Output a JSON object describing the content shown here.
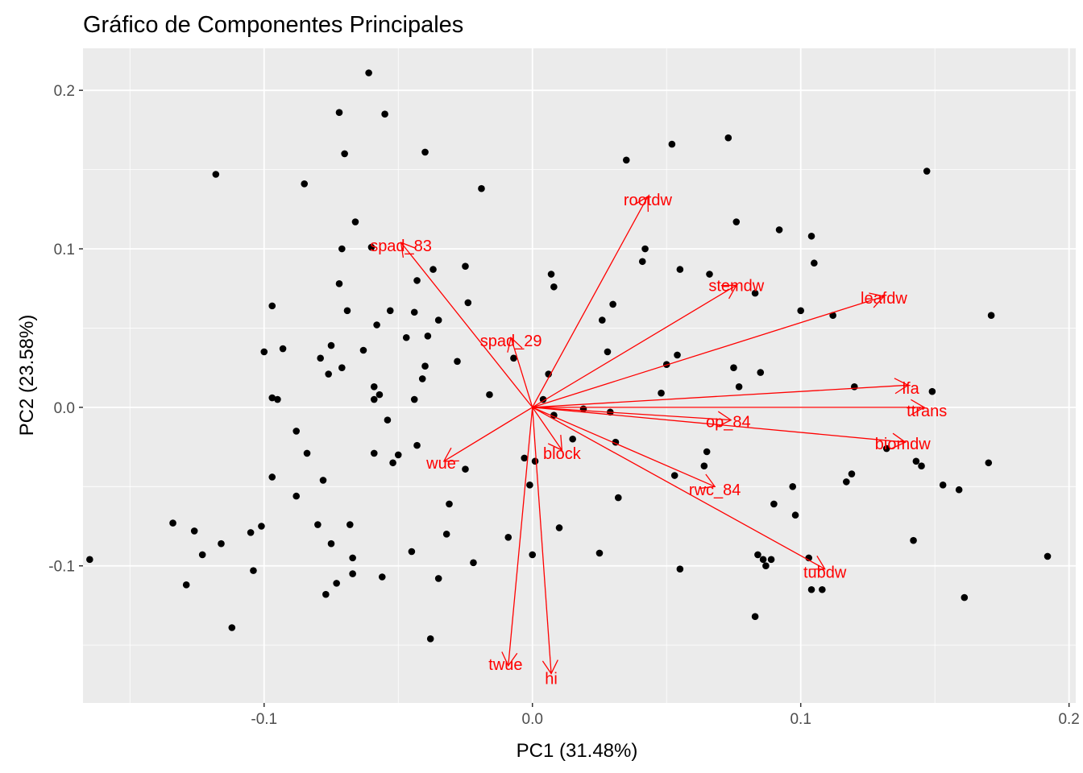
{
  "chart_data": {
    "type": "scatter",
    "subtype": "biplot",
    "title": "Gráfico de Componentes Principales",
    "xlabel": "PC1 (31.48%)",
    "ylabel": "PC2 (23.58%)",
    "xlim": [
      -0.1675,
      0.2025
    ],
    "ylim": [
      -0.1865,
      0.2265
    ],
    "x_ticks": [
      -0.1,
      0.0,
      0.1,
      0.2
    ],
    "x_tick_labels": [
      "-0.1",
      "0.0",
      "0.1",
      "0.2"
    ],
    "y_ticks": [
      -0.1,
      0.0,
      0.1,
      0.2
    ],
    "y_tick_labels": [
      "-0.1",
      "0.0",
      "0.1",
      "0.2"
    ],
    "grid": true,
    "colors": {
      "panel": "#ebebeb",
      "grid": "#ffffff",
      "points": "#000000",
      "vectors": "#ff0000"
    },
    "points": [
      [
        -0.165,
        -0.096
      ],
      [
        -0.134,
        -0.073
      ],
      [
        -0.129,
        -0.112
      ],
      [
        -0.126,
        -0.078
      ],
      [
        -0.123,
        -0.093
      ],
      [
        -0.118,
        0.147
      ],
      [
        -0.116,
        -0.086
      ],
      [
        -0.112,
        -0.139
      ],
      [
        -0.105,
        -0.079
      ],
      [
        -0.104,
        -0.103
      ],
      [
        -0.101,
        -0.075
      ],
      [
        -0.1,
        0.035
      ],
      [
        -0.097,
        0.006
      ],
      [
        -0.097,
        0.064
      ],
      [
        -0.097,
        -0.044
      ],
      [
        -0.095,
        0.005
      ],
      [
        -0.093,
        0.037
      ],
      [
        -0.088,
        -0.015
      ],
      [
        -0.088,
        -0.056
      ],
      [
        -0.085,
        0.141
      ],
      [
        -0.084,
        -0.029
      ],
      [
        -0.08,
        -0.074
      ],
      [
        -0.079,
        0.031
      ],
      [
        -0.078,
        -0.046
      ],
      [
        -0.077,
        -0.118
      ],
      [
        -0.076,
        0.021
      ],
      [
        -0.075,
        -0.086
      ],
      [
        -0.075,
        0.039
      ],
      [
        -0.073,
        -0.111
      ],
      [
        -0.072,
        0.078
      ],
      [
        -0.072,
        0.186
      ],
      [
        -0.071,
        0.025
      ],
      [
        -0.071,
        0.1
      ],
      [
        -0.07,
        0.16
      ],
      [
        -0.069,
        0.061
      ],
      [
        -0.068,
        -0.074
      ],
      [
        -0.067,
        -0.095
      ],
      [
        -0.067,
        -0.105
      ],
      [
        -0.066,
        0.117
      ],
      [
        -0.063,
        0.036
      ],
      [
        -0.061,
        0.211
      ],
      [
        -0.06,
        0.101
      ],
      [
        -0.059,
        0.005
      ],
      [
        -0.059,
        0.013
      ],
      [
        -0.059,
        -0.029
      ],
      [
        -0.058,
        0.052
      ],
      [
        -0.057,
        0.008
      ],
      [
        -0.056,
        -0.107
      ],
      [
        -0.055,
        0.185
      ],
      [
        -0.054,
        -0.008
      ],
      [
        -0.053,
        0.061
      ],
      [
        -0.052,
        -0.035
      ],
      [
        -0.05,
        -0.03
      ],
      [
        -0.047,
        0.044
      ],
      [
        -0.045,
        -0.091
      ],
      [
        -0.044,
        0.06
      ],
      [
        -0.044,
        0.005
      ],
      [
        -0.043,
        -0.024
      ],
      [
        -0.043,
        0.08
      ],
      [
        -0.041,
        0.018
      ],
      [
        -0.04,
        0.026
      ],
      [
        -0.04,
        0.161
      ],
      [
        -0.039,
        0.045
      ],
      [
        -0.038,
        -0.146
      ],
      [
        -0.037,
        0.087
      ],
      [
        -0.035,
        -0.108
      ],
      [
        -0.035,
        0.055
      ],
      [
        -0.032,
        -0.08
      ],
      [
        -0.031,
        -0.061
      ],
      [
        -0.028,
        0.029
      ],
      [
        -0.025,
        -0.039
      ],
      [
        -0.025,
        0.089
      ],
      [
        -0.024,
        0.066
      ],
      [
        -0.022,
        -0.098
      ],
      [
        -0.019,
        0.138
      ],
      [
        -0.016,
        0.008
      ],
      [
        -0.009,
        -0.082
      ],
      [
        -0.007,
        0.031
      ],
      [
        -0.003,
        -0.032
      ],
      [
        -0.001,
        -0.049
      ],
      [
        0.0,
        -0.093
      ],
      [
        0.001,
        -0.034
      ],
      [
        0.004,
        0.005
      ],
      [
        0.006,
        0.021
      ],
      [
        0.007,
        0.084
      ],
      [
        0.008,
        0.076
      ],
      [
        0.008,
        -0.005
      ],
      [
        0.01,
        -0.076
      ],
      [
        0.015,
        -0.02
      ],
      [
        0.019,
        -0.001
      ],
      [
        0.025,
        -0.092
      ],
      [
        0.026,
        0.055
      ],
      [
        0.028,
        0.035
      ],
      [
        0.029,
        -0.003
      ],
      [
        0.03,
        0.065
      ],
      [
        0.031,
        -0.022
      ],
      [
        0.032,
        -0.057
      ],
      [
        0.035,
        0.156
      ],
      [
        0.041,
        0.092
      ],
      [
        0.042,
        0.1
      ],
      [
        0.048,
        0.009
      ],
      [
        0.05,
        0.027
      ],
      [
        0.052,
        0.166
      ],
      [
        0.053,
        -0.043
      ],
      [
        0.054,
        0.033
      ],
      [
        0.055,
        -0.102
      ],
      [
        0.055,
        0.087
      ],
      [
        0.064,
        -0.037
      ],
      [
        0.065,
        -0.028
      ],
      [
        0.066,
        0.084
      ],
      [
        0.073,
        0.17
      ],
      [
        0.075,
        0.025
      ],
      [
        0.076,
        0.117
      ],
      [
        0.077,
        0.013
      ],
      [
        0.083,
        0.072
      ],
      [
        0.083,
        -0.132
      ],
      [
        0.084,
        -0.093
      ],
      [
        0.085,
        0.022
      ],
      [
        0.086,
        -0.096
      ],
      [
        0.087,
        -0.1
      ],
      [
        0.089,
        -0.096
      ],
      [
        0.09,
        -0.061
      ],
      [
        0.092,
        0.112
      ],
      [
        0.097,
        -0.05
      ],
      [
        0.098,
        -0.068
      ],
      [
        0.1,
        0.061
      ],
      [
        0.103,
        -0.095
      ],
      [
        0.104,
        -0.115
      ],
      [
        0.104,
        0.108
      ],
      [
        0.105,
        0.091
      ],
      [
        0.108,
        -0.115
      ],
      [
        0.112,
        0.058
      ],
      [
        0.117,
        -0.047
      ],
      [
        0.119,
        -0.042
      ],
      [
        0.12,
        0.013
      ],
      [
        0.132,
        -0.026
      ],
      [
        0.142,
        -0.084
      ],
      [
        0.143,
        -0.034
      ],
      [
        0.145,
        -0.037
      ],
      [
        0.147,
        0.149
      ],
      [
        0.149,
        0.01
      ],
      [
        0.153,
        -0.049
      ],
      [
        0.159,
        -0.052
      ],
      [
        0.161,
        -0.12
      ],
      [
        0.17,
        -0.035
      ],
      [
        0.171,
        0.058
      ],
      [
        0.192,
        -0.094
      ]
    ],
    "vectors": [
      {
        "label": "rootdw",
        "x": 0.043,
        "y": 0.133,
        "lx": 0.043,
        "ly": 0.131
      },
      {
        "label": "spad_83",
        "x": -0.049,
        "y": 0.104,
        "lx": -0.049,
        "ly": 0.102
      },
      {
        "label": "spad_29",
        "x": -0.008,
        "y": 0.044,
        "lx": -0.008,
        "ly": 0.042
      },
      {
        "label": "stemdw",
        "x": 0.076,
        "y": 0.077,
        "lx": 0.076,
        "ly": 0.077
      },
      {
        "label": "leafdw",
        "x": 0.131,
        "y": 0.07,
        "lx": 0.131,
        "ly": 0.069
      },
      {
        "label": "lfa",
        "x": 0.14,
        "y": 0.014,
        "lx": 0.141,
        "ly": 0.012
      },
      {
        "label": "ttrans",
        "x": 0.146,
        "y": 0.0,
        "lx": 0.147,
        "ly": -0.002
      },
      {
        "label": "op_84",
        "x": 0.074,
        "y": -0.008,
        "lx": 0.073,
        "ly": -0.009
      },
      {
        "label": "biomdw",
        "x": 0.139,
        "y": -0.022,
        "lx": 0.138,
        "ly": -0.023
      },
      {
        "label": "rwc_84",
        "x": 0.068,
        "y": -0.05,
        "lx": 0.068,
        "ly": -0.052
      },
      {
        "label": "tubdw",
        "x": 0.109,
        "y": -0.102,
        "lx": 0.109,
        "ly": -0.104
      },
      {
        "label": "block",
        "x": 0.011,
        "y": -0.027,
        "lx": 0.011,
        "ly": -0.029
      },
      {
        "label": "wue",
        "x": -0.033,
        "y": -0.034,
        "lx": -0.034,
        "ly": -0.035
      },
      {
        "label": "twue",
        "x": -0.009,
        "y": -0.163,
        "lx": -0.01,
        "ly": -0.162
      },
      {
        "label": "hi",
        "x": 0.007,
        "y": -0.168,
        "lx": 0.007,
        "ly": -0.171
      }
    ]
  }
}
